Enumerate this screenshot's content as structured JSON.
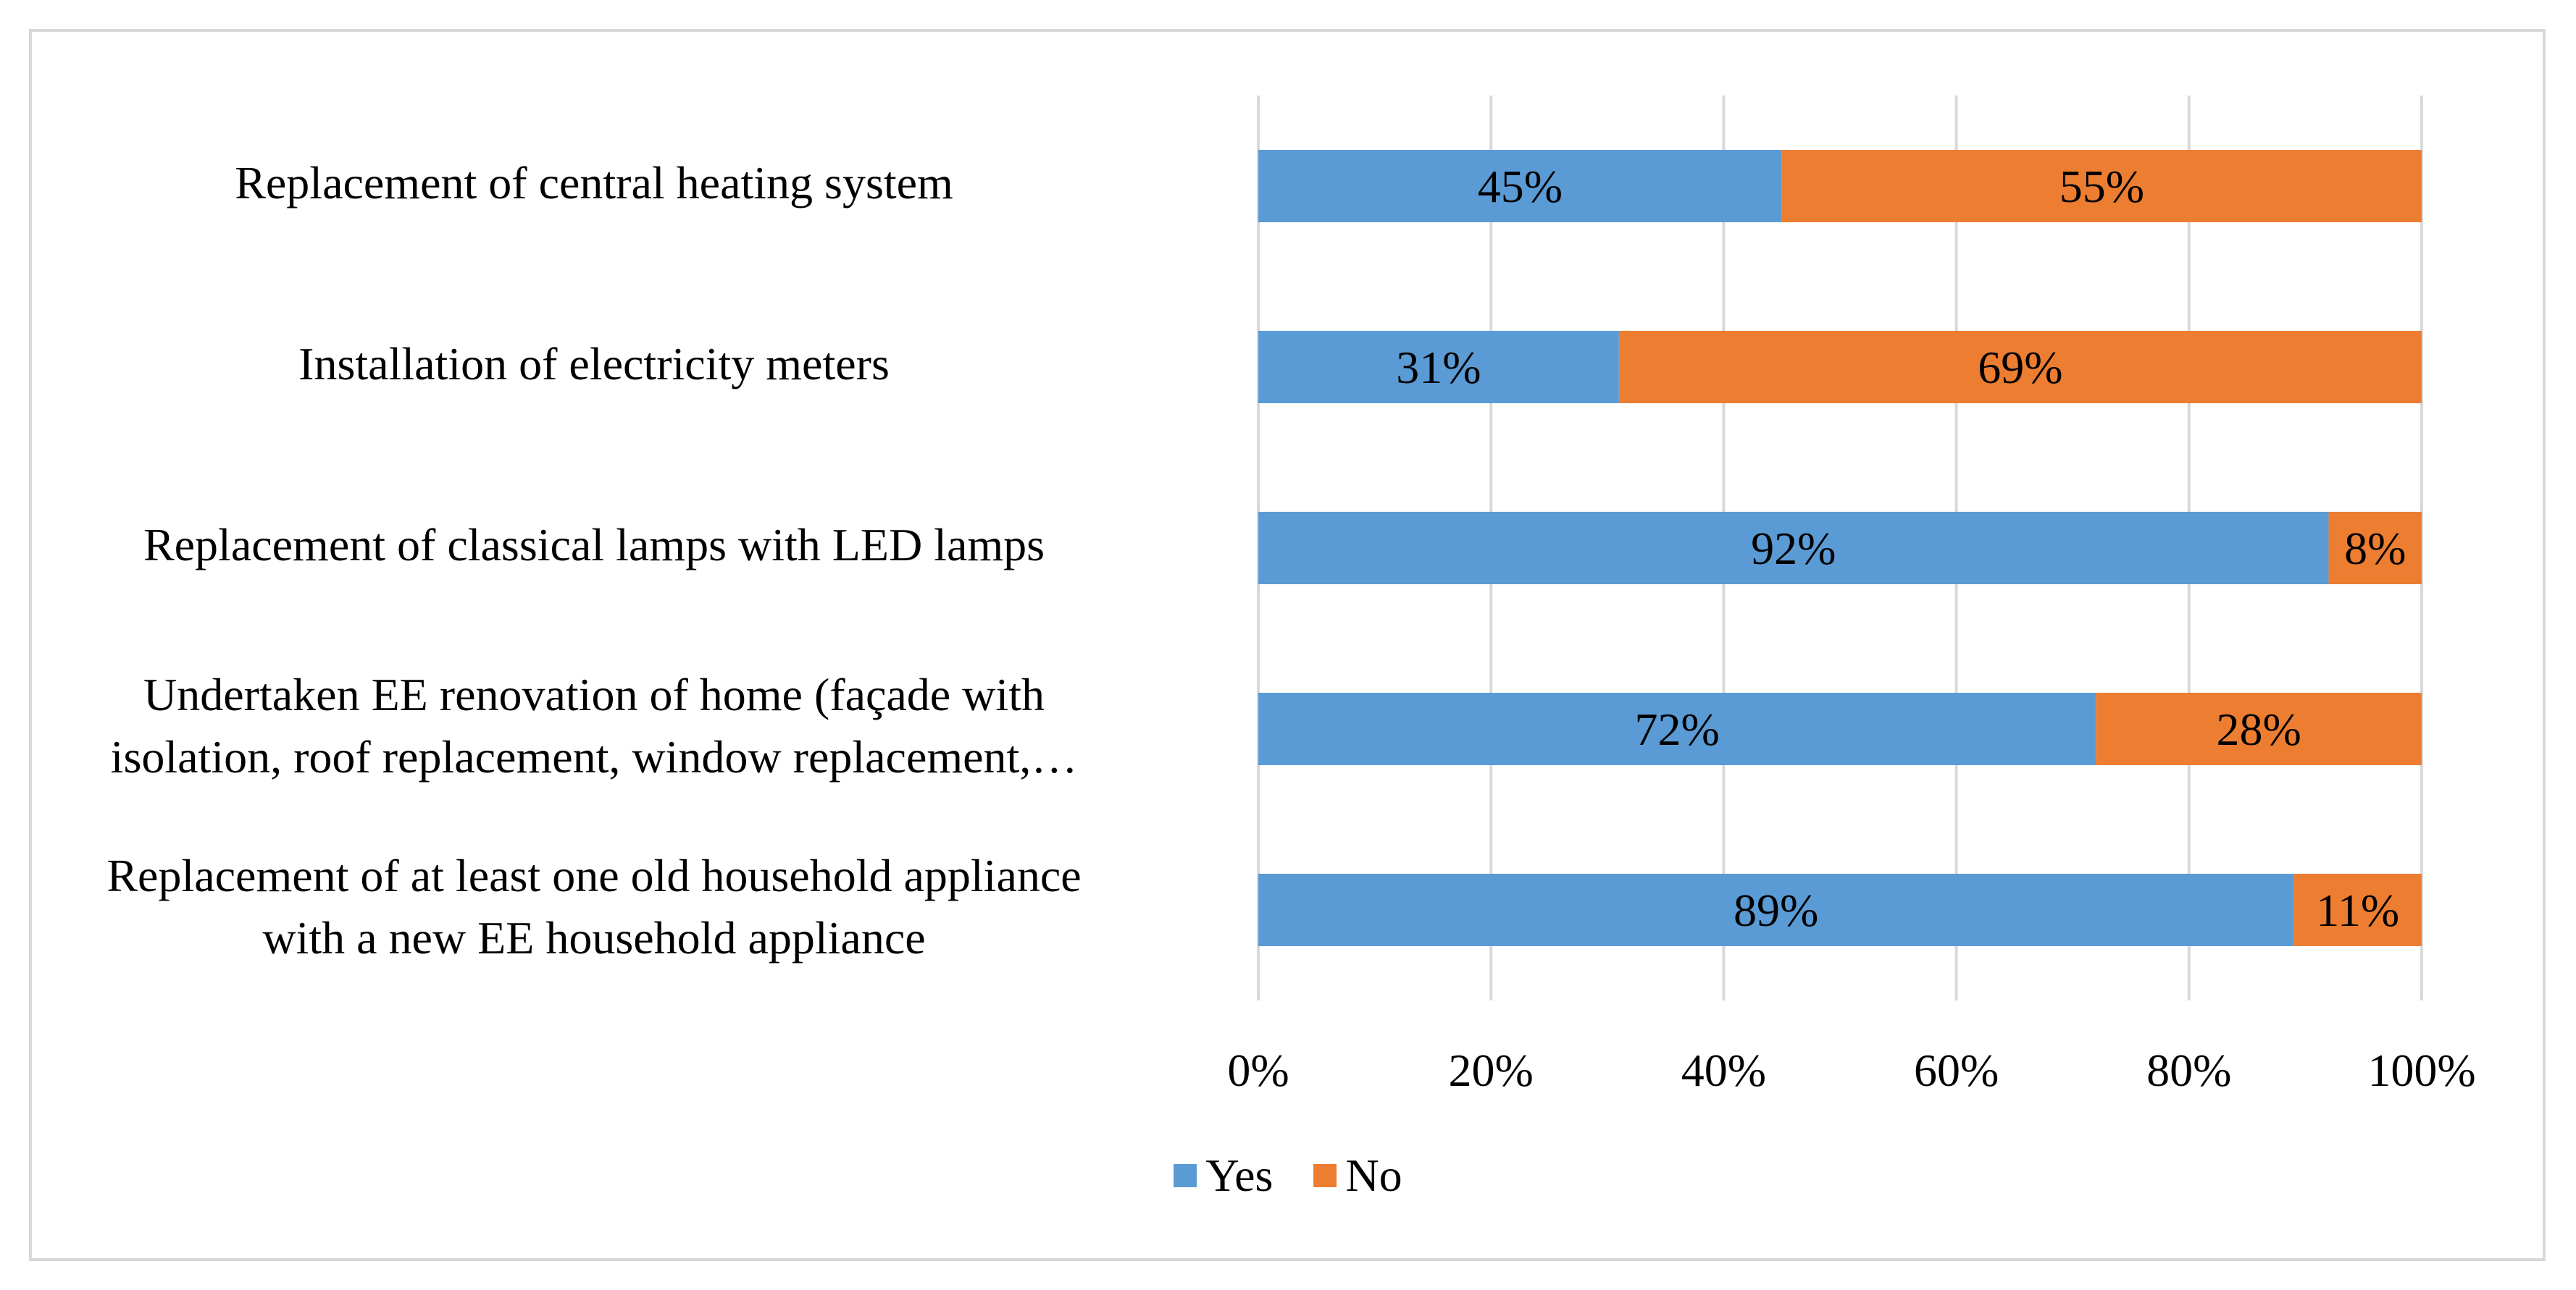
{
  "chart_data": {
    "type": "bar",
    "orientation": "horizontal",
    "stacked": "percent",
    "categories": [
      "Replacement of central heating system",
      "Installation of electricity meters",
      "Replacement of classical lamps with LED lamps",
      "Undertaken EE renovation of home (façade with isolation, roof replacement, window replacement,…",
      "Replacement of at least one old household appliance with a new EE household appliance"
    ],
    "category_lines": [
      [
        "Replacement of central heating system"
      ],
      [
        "Installation of electricity meters"
      ],
      [
        "Replacement of classical lamps with LED lamps"
      ],
      [
        "Undertaken EE renovation of home (façade with",
        "isolation, roof replacement, window replacement,…"
      ],
      [
        "Replacement of at least one old household appliance",
        "with a new EE household appliance"
      ]
    ],
    "series": [
      {
        "name": "Yes",
        "color": "#5b9bd5",
        "values": [
          45,
          31,
          92,
          72,
          89
        ],
        "labels": [
          "45%",
          "31%",
          "92%",
          "72%",
          "89%"
        ]
      },
      {
        "name": "No",
        "color": "#ed7d31",
        "values": [
          55,
          69,
          8,
          28,
          11
        ],
        "labels": [
          "55%",
          "69%",
          "8%",
          "28%",
          "11%"
        ]
      }
    ],
    "x_ticks": [
      "0%",
      "20%",
      "40%",
      "60%",
      "80%",
      "100%"
    ],
    "xlim": [
      0,
      100
    ],
    "grid": true,
    "legend_position": "bottom"
  }
}
